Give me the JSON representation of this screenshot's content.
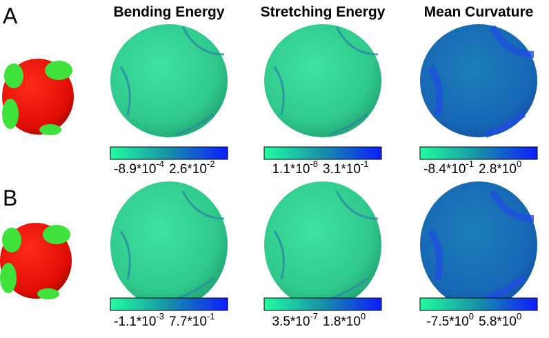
{
  "headers": [
    "Bending Energy",
    "Stretching Energy",
    "Mean Curvature"
  ],
  "panels": [
    {
      "label": "A",
      "colorbars": [
        {
          "min": {
            "base": "-8.9*10",
            "exp": "-4"
          },
          "max": {
            "base": "2.6*10",
            "exp": "-2"
          }
        },
        {
          "min": {
            "base": "1.1*10",
            "exp": "-8"
          },
          "max": {
            "base": "3.1*10",
            "exp": "-1"
          }
        },
        {
          "min": {
            "base": "-8.4*10",
            "exp": "-1"
          },
          "max": {
            "base": "2.8*10",
            "exp": "0"
          }
        }
      ]
    },
    {
      "label": "B",
      "colorbars": [
        {
          "min": {
            "base": "-1.1*10",
            "exp": "-3"
          },
          "max": {
            "base": "7.7*10",
            "exp": "-1"
          }
        },
        {
          "min": {
            "base": "3.5*10",
            "exp": "-7"
          },
          "max": {
            "base": "1.8*10",
            "exp": "0"
          }
        },
        {
          "min": {
            "base": "-7.5*10",
            "exp": "0"
          },
          "max": {
            "base": "5.8*10",
            "exp": "0"
          }
        }
      ]
    }
  ]
}
